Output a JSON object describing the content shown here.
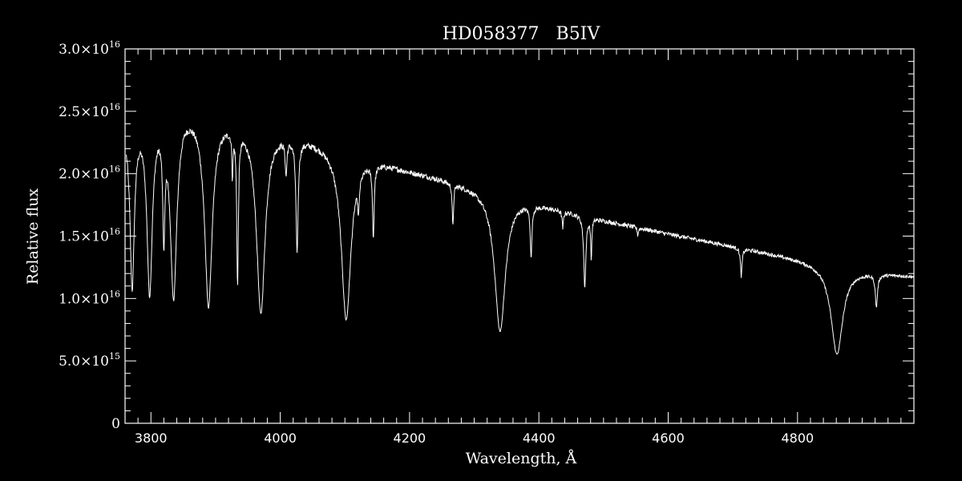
{
  "chart_data": {
    "type": "line",
    "title": "HD058377   B5IV",
    "xlabel": "Wavelength, Å",
    "ylabel": "Relative flux",
    "xlim": [
      3760,
      4980
    ],
    "ylim": [
      0,
      3e+16
    ],
    "x_ticks": [
      3800,
      4000,
      4200,
      4400,
      4600,
      4800
    ],
    "x_tick_labels": [
      "3800",
      "4000",
      "4200",
      "4400",
      "4600",
      "4800"
    ],
    "y_ticks": [
      {
        "value": 3e+16,
        "mantissa": "3.0×10",
        "exp": "16"
      },
      {
        "value": 2.5e+16,
        "mantissa": "2.5×10",
        "exp": "16"
      },
      {
        "value": 2e+16,
        "mantissa": "2.0×10",
        "exp": "16"
      },
      {
        "value": 1.5e+16,
        "mantissa": "1.5×10",
        "exp": "16"
      },
      {
        "value": 1e+16,
        "mantissa": "1.0×10",
        "exp": "16"
      },
      {
        "value": 5000000000000000.0,
        "mantissa": "5.0×10",
        "exp": "15"
      },
      {
        "value": 0,
        "mantissa": "0",
        "exp": ""
      }
    ],
    "continuum": [
      [
        3760,
        2.4e+16
      ],
      [
        3800,
        2.5e+16
      ],
      [
        3850,
        2.55e+16
      ],
      [
        3900,
        2.47e+16
      ],
      [
        3950,
        2.42e+16
      ],
      [
        4000,
        2.35e+16
      ],
      [
        4050,
        2.28e+16
      ],
      [
        4100,
        2.2e+16
      ],
      [
        4150,
        2.11e+16
      ],
      [
        4200,
        2.03e+16
      ],
      [
        4300,
        1.9e+16
      ],
      [
        4400,
        1.76e+16
      ],
      [
        4500,
        1.63e+16
      ],
      [
        4600,
        1.52e+16
      ],
      [
        4700,
        1.42e+16
      ],
      [
        4800,
        1.32e+16
      ],
      [
        4860,
        1.26e+16
      ],
      [
        4900,
        1.22e+16
      ],
      [
        4980,
        1.18e+16
      ]
    ],
    "absorption_lines": [
      {
        "x": 3771,
        "depth": 0.55,
        "width": 4
      },
      {
        "x": 3798,
        "depth": 0.58,
        "width": 5
      },
      {
        "x": 3820,
        "depth": 0.38,
        "width": 2
      },
      {
        "x": 3835,
        "depth": 0.6,
        "width": 6
      },
      {
        "x": 3889,
        "depth": 0.62,
        "width": 7
      },
      {
        "x": 3926,
        "depth": 0.15,
        "width": 1
      },
      {
        "x": 3934,
        "depth": 0.53,
        "width": 1.5
      },
      {
        "x": 3970,
        "depth": 0.63,
        "width": 8
      },
      {
        "x": 4009,
        "depth": 0.12,
        "width": 1.5
      },
      {
        "x": 4026,
        "depth": 0.4,
        "width": 2
      },
      {
        "x": 4102,
        "depth": 0.62,
        "width": 9
      },
      {
        "x": 4121,
        "depth": 0.13,
        "width": 1.5
      },
      {
        "x": 4144,
        "depth": 0.28,
        "width": 1.5
      },
      {
        "x": 4267,
        "depth": 0.18,
        "width": 1.2
      },
      {
        "x": 4340,
        "depth": 0.6,
        "width": 10
      },
      {
        "x": 4388,
        "depth": 0.24,
        "width": 1.5
      },
      {
        "x": 4437,
        "depth": 0.08,
        "width": 1.2
      },
      {
        "x": 4471,
        "depth": 0.34,
        "width": 2
      },
      {
        "x": 4481,
        "depth": 0.2,
        "width": 1
      },
      {
        "x": 4553,
        "depth": 0.04,
        "width": 1
      },
      {
        "x": 4713,
        "depth": 0.16,
        "width": 1.5
      },
      {
        "x": 4861,
        "depth": 0.56,
        "width": 11
      },
      {
        "x": 4922,
        "depth": 0.22,
        "width": 2
      }
    ],
    "grid": false,
    "background": "#000000",
    "foreground": "#ffffff"
  }
}
